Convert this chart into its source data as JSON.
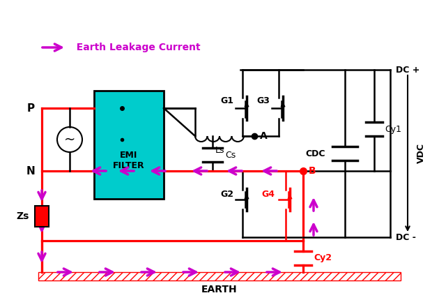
{
  "bg_color": "#ffffff",
  "title": "EARTH",
  "arrow_color": "#cc00cc",
  "red_color": "#ff0000",
  "black_color": "#000000",
  "cyan_color": "#00cccc",
  "dc_plus_label": "DC +",
  "dc_minus_label": "DC -",
  "vdc_label": "VDC",
  "cdc_label": "CDC",
  "cy1_label": "Cy1",
  "cy2_label": "Cy2",
  "g1_label": "G1",
  "g2_label": "G2",
  "g3_label": "G3",
  "g4_label": "G4",
  "ls_label": "Ls",
  "cs_label": "Cs",
  "a_label": "A",
  "b_label": "B",
  "p_label": "P",
  "n_label": "N",
  "zs_label": "Zs",
  "emi_label": "EMI\nFILTER",
  "legend_label": "  Earth Leakage Current"
}
